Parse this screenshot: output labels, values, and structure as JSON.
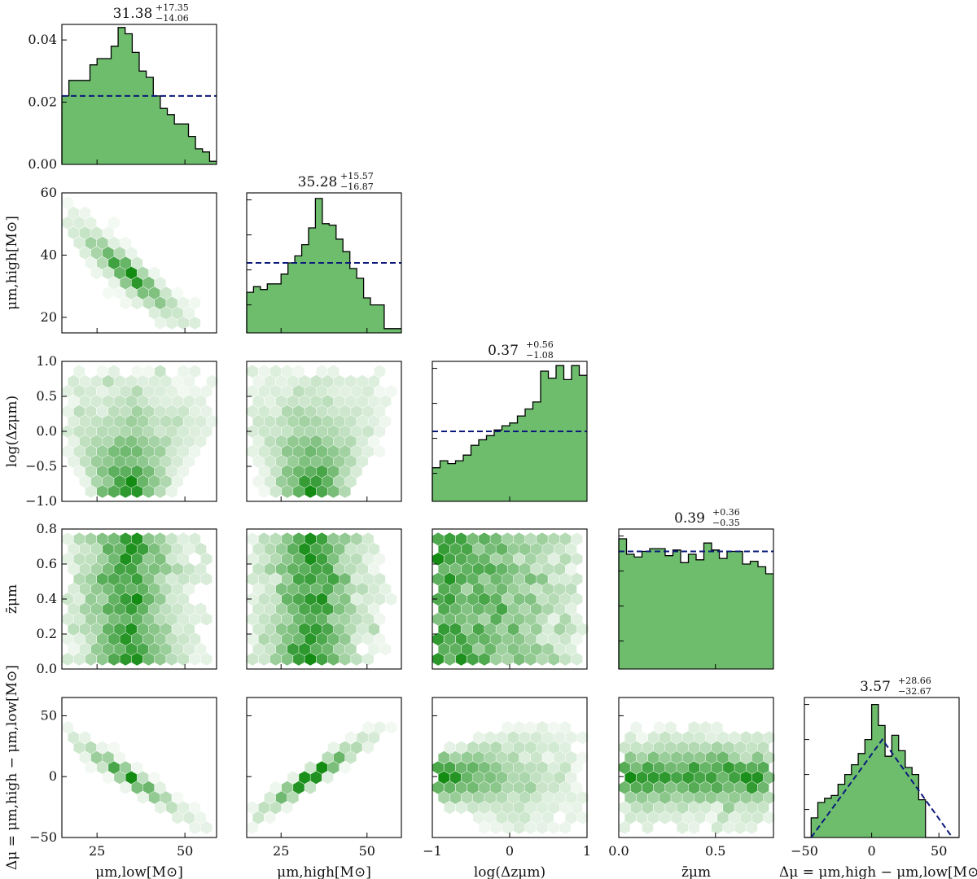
{
  "chart_data": {
    "type": "corner",
    "parameters": [
      {
        "key": "mu_low",
        "label": "μm,low[M⊙]",
        "ticks": [
          25,
          50
        ],
        "tick_labels": [
          "25",
          "50"
        ],
        "range": [
          15,
          59
        ]
      },
      {
        "key": "mu_high",
        "label": "μm,high[M⊙]",
        "ticks": [
          20,
          40,
          60
        ],
        "tick_labels": [
          "20",
          "40",
          "60"
        ],
        "range": [
          15,
          60
        ]
      },
      {
        "key": "log_dz",
        "label": "log(Δzμm)",
        "ticks": [
          -1,
          -0.5,
          0,
          0.5,
          1
        ],
        "tick_labels": [
          "−1.0",
          "−0.5",
          "0.0",
          "0.5",
          "1.0"
        ],
        "range": [
          -1,
          1
        ]
      },
      {
        "key": "zbar",
        "label": "z̄μm",
        "ticks": [
          0,
          0.2,
          0.4,
          0.6,
          0.8
        ],
        "tick_labels": [
          "0.0",
          "0.2",
          "0.4",
          "0.6",
          "0.8"
        ],
        "range": [
          0,
          0.8
        ]
      },
      {
        "key": "dmu",
        "label": "Δμ = μm,high − μm,low[M⊙]",
        "ticks": [
          -50,
          0,
          50
        ],
        "tick_labels": [
          "−50",
          "0",
          "50"
        ],
        "range": [
          -50,
          65
        ]
      }
    ],
    "x_axis_ticks": {
      "mu_low": {
        "ticks": [
          25,
          50
        ],
        "labels": [
          "25",
          "50"
        ]
      },
      "mu_high": {
        "ticks": [
          25,
          50
        ],
        "labels": [
          "25",
          "50"
        ]
      },
      "log_dz": {
        "ticks": [
          -1,
          0,
          1
        ],
        "labels": [
          "−1",
          "0",
          "1"
        ]
      },
      "zbar": {
        "ticks": [
          0,
          0.5
        ],
        "labels": [
          "0.0",
          "0.5"
        ]
      },
      "dmu": {
        "ticks": [
          -50,
          0,
          50
        ],
        "labels": [
          "−50",
          "0",
          "50"
        ]
      }
    },
    "diagonal": [
      {
        "param": "mu_low",
        "title_main": "31.38",
        "title_plus": "+17.35",
        "title_minus": "−14.06",
        "ylim": [
          0,
          0.045
        ],
        "yticks": [
          0,
          0.02,
          0.04
        ],
        "ytick_labels": [
          "0.00",
          "0.02",
          "0.04"
        ],
        "bin_edges": [
          15,
          17,
          19,
          21,
          23,
          25,
          27,
          29,
          31,
          33,
          35,
          37,
          39,
          41,
          43,
          45,
          47,
          49,
          51,
          53,
          55,
          57,
          59
        ],
        "heights": [
          0.022,
          0.027,
          0.027,
          0.027,
          0.032,
          0.034,
          0.034,
          0.038,
          0.044,
          0.042,
          0.036,
          0.03,
          0.028,
          0.022,
          0.018,
          0.016,
          0.013,
          0.013,
          0.009,
          0.005,
          0.004,
          0.001
        ],
        "prior": {
          "type": "flat",
          "value": 0.022
        }
      },
      {
        "param": "mu_high",
        "title_main": "35.28",
        "title_plus": "+15.57",
        "title_minus": "−16.87",
        "ylim": [
          0,
          1
        ],
        "yticks": [
          0.2,
          0.45,
          0.7,
          0.95
        ],
        "bin_edges": [
          15,
          17,
          19,
          21,
          23,
          25,
          27,
          29,
          31,
          33,
          35,
          37,
          39,
          41,
          43,
          45,
          47,
          49,
          51,
          53,
          55,
          57,
          60
        ],
        "heights": [
          0.29,
          0.33,
          0.31,
          0.35,
          0.35,
          0.42,
          0.5,
          0.55,
          0.63,
          0.75,
          0.96,
          0.78,
          0.77,
          0.67,
          0.58,
          0.46,
          0.39,
          0.25,
          0.2,
          0.2,
          0.03,
          0.03
        ],
        "prior": {
          "type": "flat",
          "value": 0.5
        }
      },
      {
        "param": "log_dz",
        "title_main": "0.37",
        "title_plus": "+0.56",
        "title_minus": "−1.08",
        "ylim": [
          0,
          1
        ],
        "yticks": [
          0.2,
          0.45,
          0.7,
          0.95
        ],
        "bin_edges": [
          -1,
          -0.9,
          -0.8,
          -0.7,
          -0.6,
          -0.5,
          -0.4,
          -0.3,
          -0.2,
          -0.1,
          0,
          0.1,
          0.2,
          0.3,
          0.4,
          0.5,
          0.6,
          0.7,
          0.8,
          0.9,
          1
        ],
        "heights": [
          0.24,
          0.29,
          0.27,
          0.29,
          0.33,
          0.4,
          0.44,
          0.47,
          0.51,
          0.54,
          0.56,
          0.61,
          0.66,
          0.71,
          0.93,
          0.88,
          0.97,
          0.87,
          0.97,
          0.9
        ],
        "prior": {
          "type": "flat",
          "value": 0.5
        }
      },
      {
        "param": "zbar",
        "title_main": "0.39",
        "title_plus": "+0.36",
        "title_minus": "−0.35",
        "ylim": [
          0,
          1
        ],
        "yticks": [
          0.2,
          0.45,
          0.7,
          0.95
        ],
        "bin_edges": [
          0,
          0.04,
          0.08,
          0.12,
          0.16,
          0.2,
          0.24,
          0.28,
          0.32,
          0.36,
          0.4,
          0.44,
          0.48,
          0.52,
          0.56,
          0.6,
          0.64,
          0.68,
          0.72,
          0.76,
          0.8
        ],
        "heights": [
          0.93,
          0.82,
          0.8,
          0.84,
          0.86,
          0.86,
          0.81,
          0.85,
          0.76,
          0.82,
          0.78,
          0.9,
          0.85,
          0.79,
          0.84,
          0.84,
          0.75,
          0.77,
          0.73,
          0.68
        ],
        "prior": {
          "type": "flat",
          "value": 0.84
        }
      },
      {
        "param": "dmu",
        "title_main": "3.57",
        "title_plus": "+28.66",
        "title_minus": "−32.67",
        "ylim": [
          0,
          1
        ],
        "yticks": [
          0.2,
          0.45,
          0.7,
          0.95
        ],
        "bin_edges": [
          -50,
          -45,
          -40,
          -35,
          -30,
          -25,
          -20,
          -15,
          -10,
          -5,
          0,
          5,
          10,
          15,
          20,
          25,
          30,
          35,
          40,
          45,
          50,
          55,
          60,
          65
        ],
        "heights": [
          0,
          0.14,
          0.25,
          0.28,
          0.3,
          0.38,
          0.45,
          0.52,
          0.6,
          0.7,
          0.95,
          0.8,
          0.58,
          0.73,
          0.62,
          0.5,
          0.45,
          0.27,
          0,
          0,
          0,
          0,
          0
        ],
        "prior": {
          "type": "triangle",
          "points": [
            [
              -45,
              0
            ],
            [
              8,
              0.7
            ],
            [
              60,
              0
            ]
          ]
        }
      }
    ],
    "pairs": [
      {
        "row": "mu_high",
        "col": "mu_low",
        "relation": "anti-correlated",
        "note": "mu_high ≈ 68 − mu_low"
      },
      {
        "row": "log_dz",
        "col": "mu_low",
        "relation": "funnel"
      },
      {
        "row": "log_dz",
        "col": "mu_high",
        "relation": "funnel"
      },
      {
        "row": "zbar",
        "col": "mu_low",
        "relation": "uncorrelated"
      },
      {
        "row": "zbar",
        "col": "mu_high",
        "relation": "uncorrelated"
      },
      {
        "row": "zbar",
        "col": "log_dz",
        "relation": "uncorrelated"
      },
      {
        "row": "dmu",
        "col": "mu_low",
        "relation": "anti-correlated",
        "note": "dmu ≈ 2*(34 − mu_low)"
      },
      {
        "row": "dmu",
        "col": "mu_high",
        "relation": "correlated",
        "note": "dmu ≈ 2*(mu_high − 34)"
      },
      {
        "row": "dmu",
        "col": "log_dz",
        "relation": "funnel (widening)"
      },
      {
        "row": "dmu",
        "col": "zbar",
        "relation": "uncorrelated"
      }
    ],
    "colors": {
      "fill": "#6dbd6d",
      "prior_line": "#0b1a7a",
      "hex_base": "#2ca02c",
      "frame": "#000000"
    }
  }
}
